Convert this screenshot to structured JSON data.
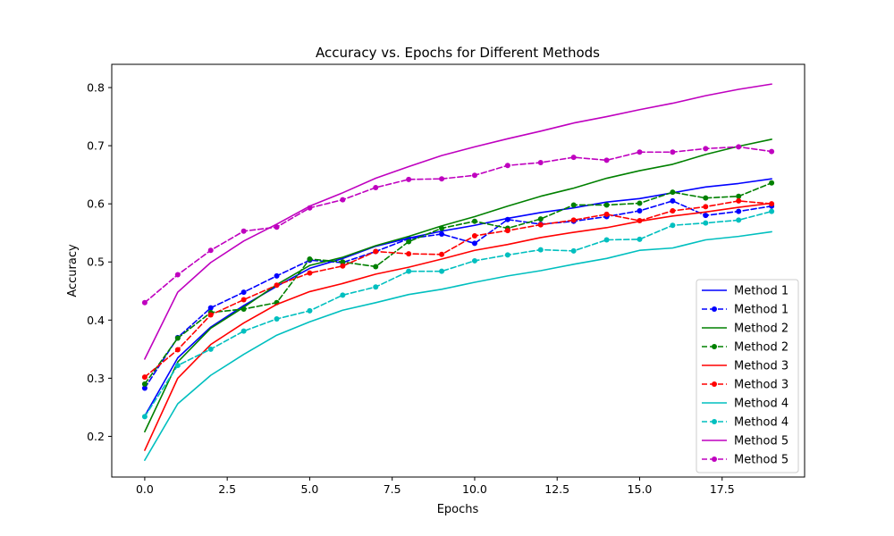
{
  "chart_data": {
    "type": "line",
    "title": "Accuracy vs. Epochs for Different Methods",
    "xlabel": "Epochs",
    "ylabel": "Accuracy",
    "xlim": [
      -1,
      20
    ],
    "ylim": [
      0.13,
      0.84
    ],
    "xticks": [
      0.0,
      2.5,
      5.0,
      7.5,
      10.0,
      12.5,
      15.0,
      17.5
    ],
    "xtick_labels": [
      "0.0",
      "2.5",
      "5.0",
      "7.5",
      "10.0",
      "12.5",
      "15.0",
      "17.5"
    ],
    "yticks": [
      0.2,
      0.3,
      0.4,
      0.5,
      0.6,
      0.7,
      0.8
    ],
    "ytick_labels": [
      "0.2",
      "0.3",
      "0.4",
      "0.5",
      "0.6",
      "0.7",
      "0.8"
    ],
    "grid": false,
    "legend_position": "lower-right",
    "x": [
      0,
      1,
      2,
      3,
      4,
      5,
      6,
      7,
      8,
      9,
      10,
      11,
      12,
      13,
      14,
      15,
      16,
      17,
      18,
      19
    ],
    "series": [
      {
        "name": "Method 1",
        "color": "#0000ff",
        "style": "solid",
        "values": [
          0.235,
          0.335,
          0.388,
          0.425,
          0.458,
          0.489,
          0.506,
          0.527,
          0.541,
          0.553,
          0.563,
          0.575,
          0.585,
          0.593,
          0.603,
          0.609,
          0.619,
          0.629,
          0.635,
          0.643
        ]
      },
      {
        "name": "Method 1",
        "color": "#0000ff",
        "style": "dashed",
        "values": [
          0.283,
          0.37,
          0.421,
          0.448,
          0.476,
          0.503,
          0.499,
          0.518,
          0.54,
          0.548,
          0.532,
          0.573,
          0.565,
          0.57,
          0.578,
          0.588,
          0.605,
          0.58,
          0.587,
          0.596
        ]
      },
      {
        "name": "Method 2",
        "color": "#008000",
        "style": "solid",
        "values": [
          0.208,
          0.328,
          0.386,
          0.422,
          0.461,
          0.494,
          0.508,
          0.528,
          0.544,
          0.562,
          0.578,
          0.596,
          0.613,
          0.627,
          0.644,
          0.657,
          0.668,
          0.685,
          0.699,
          0.711
        ]
      },
      {
        "name": "Method 2",
        "color": "#008000",
        "style": "dashed",
        "values": [
          0.29,
          0.369,
          0.413,
          0.419,
          0.43,
          0.505,
          0.5,
          0.492,
          0.535,
          0.558,
          0.57,
          0.558,
          0.574,
          0.598,
          0.598,
          0.601,
          0.62,
          0.61,
          0.613,
          0.636
        ]
      },
      {
        "name": "Method 3",
        "color": "#ff0000",
        "style": "solid",
        "values": [
          0.176,
          0.3,
          0.358,
          0.395,
          0.427,
          0.449,
          0.463,
          0.479,
          0.491,
          0.505,
          0.52,
          0.53,
          0.542,
          0.551,
          0.559,
          0.57,
          0.579,
          0.586,
          0.594,
          0.601
        ]
      },
      {
        "name": "Method 3",
        "color": "#ff0000",
        "style": "dashed",
        "values": [
          0.302,
          0.349,
          0.409,
          0.435,
          0.46,
          0.481,
          0.493,
          0.518,
          0.514,
          0.513,
          0.545,
          0.554,
          0.564,
          0.572,
          0.582,
          0.571,
          0.588,
          0.595,
          0.605,
          0.6
        ]
      },
      {
        "name": "Method 4",
        "color": "#00bfbf",
        "style": "solid",
        "values": [
          0.159,
          0.256,
          0.305,
          0.341,
          0.374,
          0.397,
          0.417,
          0.43,
          0.444,
          0.453,
          0.465,
          0.476,
          0.485,
          0.496,
          0.506,
          0.52,
          0.524,
          0.538,
          0.544,
          0.552
        ]
      },
      {
        "name": "Method 4",
        "color": "#00bfbf",
        "style": "dashed",
        "values": [
          0.234,
          0.322,
          0.35,
          0.381,
          0.402,
          0.416,
          0.443,
          0.457,
          0.484,
          0.484,
          0.502,
          0.512,
          0.521,
          0.519,
          0.538,
          0.539,
          0.563,
          0.567,
          0.572,
          0.587
        ]
      },
      {
        "name": "Method 5",
        "color": "#bf00bf",
        "style": "solid",
        "values": [
          0.333,
          0.448,
          0.499,
          0.536,
          0.565,
          0.596,
          0.619,
          0.644,
          0.664,
          0.683,
          0.698,
          0.712,
          0.725,
          0.739,
          0.75,
          0.762,
          0.773,
          0.786,
          0.797,
          0.806
        ]
      },
      {
        "name": "Method 5",
        "color": "#bf00bf",
        "style": "dashed",
        "values": [
          0.43,
          0.478,
          0.52,
          0.553,
          0.56,
          0.593,
          0.607,
          0.628,
          0.642,
          0.643,
          0.649,
          0.666,
          0.671,
          0.68,
          0.675,
          0.689,
          0.689,
          0.695,
          0.698,
          0.69
        ]
      }
    ]
  }
}
